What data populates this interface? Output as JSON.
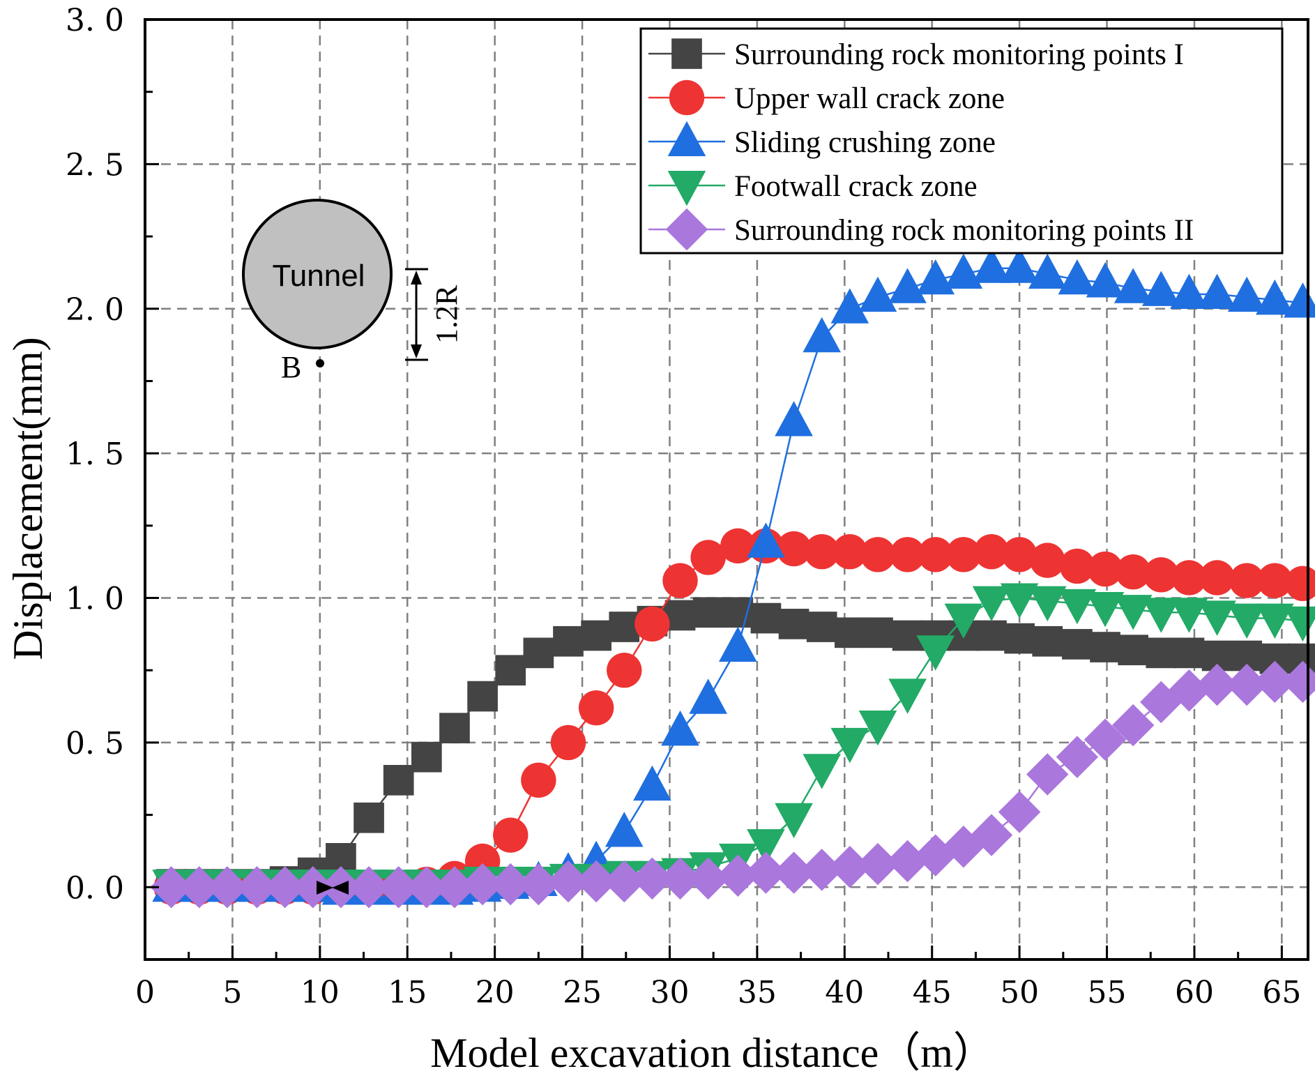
{
  "chart_data": {
    "type": "line",
    "title": "",
    "xlabel": "Model excavation distance（m）",
    "ylabel": "Displacement(mm)",
    "xlim": [
      0,
      66.5
    ],
    "ylim": [
      -0.25,
      3.0
    ],
    "xticks": [
      "0",
      "5",
      "10",
      "15",
      "20",
      "25",
      "30",
      "35",
      "40",
      "45",
      "50",
      "55",
      "60",
      "65"
    ],
    "yticks": [
      "0. 0",
      "0. 5",
      "1. 0",
      "1. 5",
      "2. 0",
      "2. 5",
      "3. 0"
    ],
    "grid": true,
    "legend_position": "top-right",
    "x": [
      1.5,
      3.1,
      4.7,
      6.4,
      8.0,
      9.6,
      11.2,
      12.8,
      14.5,
      16.1,
      17.7,
      19.3,
      20.9,
      22.5,
      24.2,
      25.8,
      27.4,
      29.0,
      30.6,
      32.2,
      33.9,
      35.5,
      37.1,
      38.7,
      40.3,
      41.9,
      43.6,
      45.2,
      46.8,
      48.4,
      50.0,
      51.6,
      53.3,
      54.9,
      56.5,
      58.1,
      59.7,
      61.3,
      63.0,
      64.6,
      66.2
    ],
    "series": [
      {
        "name": "Surrounding rock monitoring points I",
        "marker": "square",
        "color": "#444444",
        "points_x": [
          1.5,
          3.1,
          4.7,
          6.4,
          8.0,
          9.6,
          11.2,
          12.8,
          14.5,
          16.1,
          17.7,
          19.3,
          20.9,
          22.5,
          24.2,
          25.8,
          27.4,
          29.0,
          30.6,
          32.2,
          33.9,
          35.5,
          37.1,
          38.7,
          40.3,
          41.9,
          43.6,
          45.2,
          46.8,
          48.4,
          50.0,
          51.6,
          53.3,
          54.9,
          56.5,
          58.1,
          59.7,
          61.3,
          63.0,
          64.6,
          66.2
        ],
        "values": [
          0.01,
          0.01,
          0.01,
          0.01,
          0.02,
          0.05,
          0.1,
          0.24,
          0.37,
          0.45,
          0.55,
          0.66,
          0.75,
          0.81,
          0.85,
          0.87,
          0.9,
          0.92,
          0.94,
          0.95,
          0.95,
          0.93,
          0.91,
          0.9,
          0.88,
          0.88,
          0.87,
          0.87,
          0.87,
          0.87,
          0.86,
          0.85,
          0.84,
          0.83,
          0.82,
          0.81,
          0.81,
          0.8,
          0.8,
          0.79,
          0.79
        ]
      },
      {
        "name": "Upper wall crack zone",
        "marker": "circle",
        "color": "#ee3333",
        "points_x": [
          1.5,
          3.1,
          4.7,
          6.4,
          8.0,
          9.6,
          11.2,
          12.8,
          14.5,
          16.1,
          17.7,
          19.3,
          20.9,
          22.5,
          24.2,
          25.8,
          27.4,
          29.0,
          30.6,
          32.2,
          33.9,
          35.5,
          37.1,
          38.7,
          40.3,
          41.9,
          43.6,
          45.2,
          46.8,
          48.4,
          50.0,
          51.6,
          53.3,
          54.9,
          56.5,
          58.1,
          59.7,
          61.3,
          63.0,
          64.6,
          66.2
        ],
        "values": [
          0.0,
          0.0,
          0.0,
          0.0,
          0.0,
          0.0,
          0.0,
          0.0,
          0.0,
          0.01,
          0.03,
          0.09,
          0.18,
          0.37,
          0.5,
          0.62,
          0.75,
          0.91,
          1.06,
          1.14,
          1.18,
          1.18,
          1.17,
          1.16,
          1.16,
          1.15,
          1.15,
          1.15,
          1.15,
          1.16,
          1.15,
          1.13,
          1.11,
          1.1,
          1.09,
          1.08,
          1.07,
          1.07,
          1.06,
          1.06,
          1.05
        ]
      },
      {
        "name": "Sliding crushing zone",
        "marker": "triangle-up",
        "color": "#1f6fe0",
        "points_x": [
          1.5,
          3.1,
          4.7,
          6.4,
          8.0,
          9.6,
          11.2,
          12.8,
          14.5,
          16.1,
          17.7,
          19.3,
          20.9,
          22.5,
          24.2,
          25.8,
          27.4,
          29.0,
          30.6,
          32.2,
          33.9,
          35.5,
          37.1,
          38.7,
          40.3,
          41.9,
          43.6,
          45.2,
          46.8,
          48.4,
          50.0,
          51.6,
          53.3,
          54.9,
          56.5,
          58.1,
          59.7,
          61.3,
          63.0,
          64.6,
          66.2
        ],
        "values": [
          0.0,
          0.0,
          0.0,
          0.0,
          0.0,
          0.0,
          -0.01,
          -0.01,
          -0.01,
          -0.01,
          -0.01,
          0.0,
          0.01,
          0.02,
          0.05,
          0.09,
          0.19,
          0.35,
          0.54,
          0.65,
          0.83,
          1.19,
          1.61,
          1.9,
          2.0,
          2.04,
          2.07,
          2.1,
          2.12,
          2.14,
          2.14,
          2.12,
          2.1,
          2.09,
          2.07,
          2.06,
          2.05,
          2.05,
          2.04,
          2.03,
          2.02
        ]
      },
      {
        "name": "Footwall crack zone",
        "marker": "triangle-down",
        "color": "#22aa66",
        "points_x": [
          1.5,
          3.1,
          4.7,
          6.4,
          8.0,
          9.6,
          11.2,
          12.8,
          14.5,
          16.1,
          17.7,
          19.3,
          20.9,
          22.5,
          24.2,
          25.8,
          27.4,
          29.0,
          30.6,
          32.2,
          33.9,
          35.5,
          37.1,
          38.7,
          40.3,
          41.9,
          43.6,
          45.2,
          46.8,
          48.4,
          50.0,
          51.6,
          53.3,
          54.9,
          56.5,
          58.1,
          59.7,
          61.3,
          63.0,
          64.6,
          66.2
        ],
        "values": [
          0.01,
          0.01,
          0.01,
          0.01,
          0.01,
          0.01,
          0.01,
          0.01,
          0.01,
          0.01,
          0.01,
          0.02,
          0.02,
          0.02,
          0.03,
          0.03,
          0.04,
          0.04,
          0.05,
          0.07,
          0.1,
          0.15,
          0.24,
          0.41,
          0.5,
          0.56,
          0.67,
          0.82,
          0.93,
          0.99,
          1.0,
          0.99,
          0.98,
          0.97,
          0.96,
          0.95,
          0.95,
          0.94,
          0.93,
          0.93,
          0.92
        ]
      },
      {
        "name": "Surrounding rock monitoring points II",
        "marker": "diamond",
        "color": "#aa77dd",
        "points_x": [
          1.5,
          3.1,
          4.7,
          6.4,
          8.0,
          9.6,
          11.2,
          12.8,
          14.5,
          16.1,
          17.7,
          19.3,
          20.9,
          22.5,
          24.2,
          25.8,
          27.4,
          29.0,
          30.6,
          32.2,
          33.9,
          35.5,
          37.1,
          38.7,
          40.3,
          41.9,
          43.6,
          45.2,
          46.8,
          48.4,
          50.0,
          51.6,
          53.3,
          54.9,
          56.5,
          58.1,
          59.7,
          61.3,
          63.0,
          64.6,
          66.2
        ],
        "values": [
          0.0,
          0.0,
          0.0,
          0.0,
          0.0,
          0.0,
          0.0,
          0.0,
          0.0,
          0.0,
          0.0,
          0.01,
          0.01,
          0.01,
          0.02,
          0.02,
          0.02,
          0.03,
          0.03,
          0.03,
          0.04,
          0.05,
          0.05,
          0.06,
          0.07,
          0.08,
          0.09,
          0.11,
          0.14,
          0.18,
          0.26,
          0.39,
          0.45,
          0.51,
          0.56,
          0.64,
          0.68,
          0.7,
          0.7,
          0.71,
          0.71
        ]
      }
    ],
    "annotations": {
      "tunnel_label": "Tunnel",
      "point_label": "B",
      "distance_label": "1.2R"
    }
  },
  "colors": {
    "grid": "#808080",
    "axis": "#000000",
    "tunnel_fill": "#c0c0c0"
  }
}
